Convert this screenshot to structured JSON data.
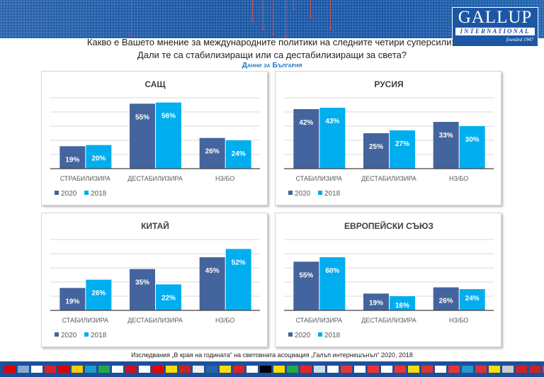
{
  "header": {
    "logo_main": "GALLUP",
    "logo_sub": "INTERNATIONAL",
    "logo_founded": "founded 1947",
    "question_line1": "Какво е Вашето мнение за международните политики на следните четири суперсили:",
    "question_line2": "Дали те са стабилизиращи или са дестабилизиращи за света?",
    "subtitle": "Данни за България"
  },
  "footer": {
    "source": "Изследвания „В края на годината“ на световната асоциация „Галъп интернешънъл“  2020, 2018"
  },
  "colors": {
    "s2020": "#44649e",
    "s2018": "#00aeef"
  },
  "chart_data": [
    {
      "type": "bar",
      "title": "САЩ",
      "categories": [
        "СТРАБИЛИЗИРА",
        "ДЕСТАБИЛИЗИРА",
        "НЗ/БО"
      ],
      "series": [
        {
          "name": "2020",
          "values": [
            19,
            55,
            26
          ]
        },
        {
          "name": "2018",
          "values": [
            20,
            56,
            24
          ]
        }
      ],
      "ylim": [
        0,
        60
      ],
      "grid": true,
      "legend": "bottom-left"
    },
    {
      "type": "bar",
      "title": "РУСИЯ",
      "categories": [
        "СТАБИЛИЗИРА",
        "ДЕСТАБИЛИЗИРА",
        "НЗ/БО"
      ],
      "series": [
        {
          "name": "2020",
          "values": [
            42,
            25,
            33
          ]
        },
        {
          "name": "2018",
          "values": [
            43,
            27,
            30
          ]
        }
      ],
      "ylim": [
        0,
        50
      ],
      "grid": true,
      "legend": "bottom-left"
    },
    {
      "type": "bar",
      "title": "КИТАЙ",
      "categories": [
        "СТАБИЛИЗИРА",
        "ДЕСТАБИЛИЗИРА",
        "НЗ/БО"
      ],
      "series": [
        {
          "name": "2020",
          "values": [
            19,
            35,
            45
          ]
        },
        {
          "name": "2018",
          "values": [
            26,
            22,
            52
          ]
        }
      ],
      "ylim": [
        0,
        60
      ],
      "grid": true,
      "legend": "bottom-left"
    },
    {
      "type": "bar",
      "title": "ЕВРОПЕЙСКИ СЪЮЗ",
      "categories": [
        "СТАБИЛИЗИРА",
        "ДЕСТАБИЛИЗИРА",
        "НЗ/БО"
      ],
      "series": [
        {
          "name": "2020",
          "values": [
            55,
            19,
            26
          ]
        },
        {
          "name": "2018",
          "values": [
            60,
            16,
            24
          ]
        }
      ],
      "ylim": [
        0,
        80
      ],
      "grid": true,
      "legend": "bottom-left"
    }
  ]
}
